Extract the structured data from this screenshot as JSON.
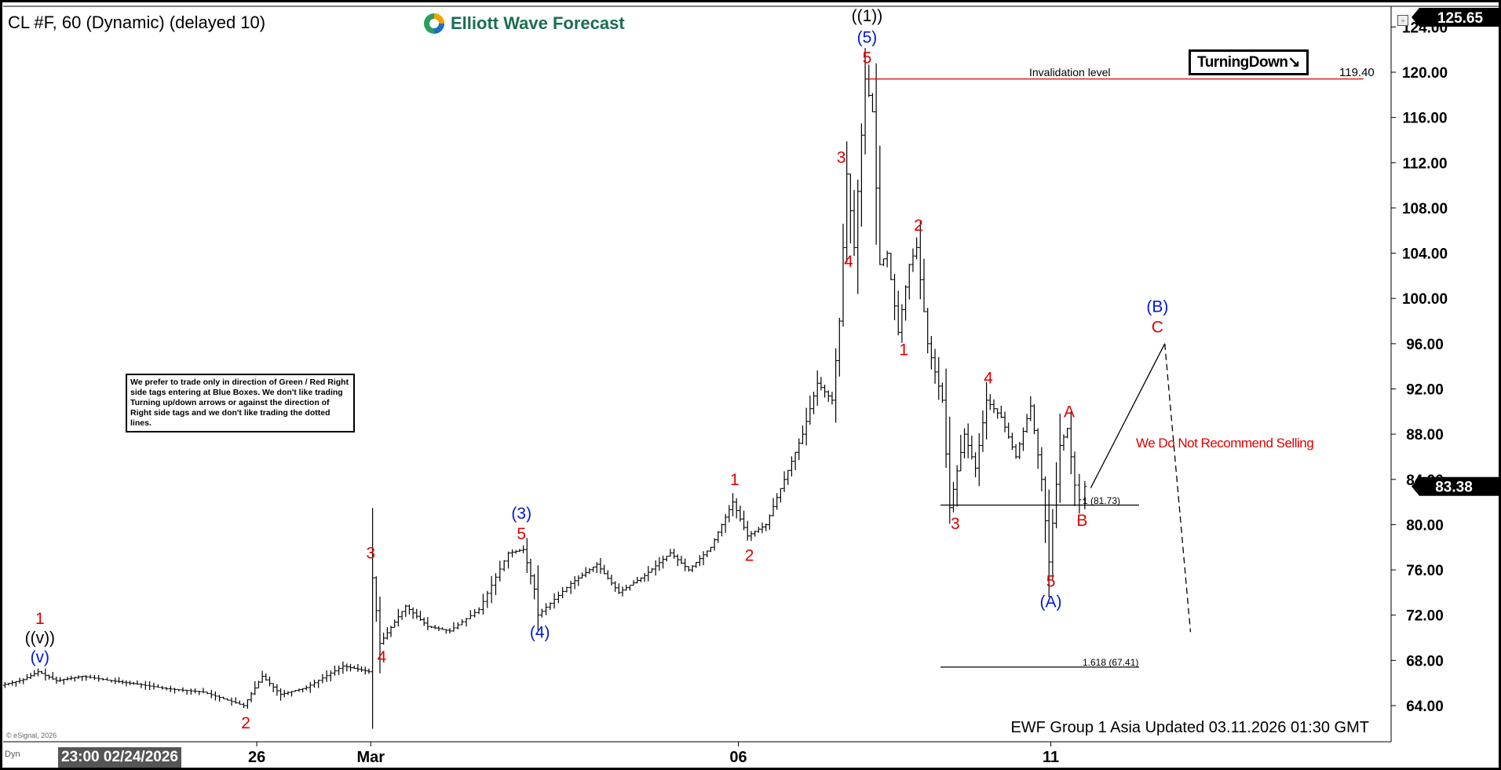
{
  "header": {
    "title": "CL #F, 60 (Dynamic) (delayed 10)",
    "logo_text": "Elliott Wave Forecast"
  },
  "badge": {
    "turning_label": "TurningDown",
    "turning_arrow": "↘"
  },
  "invalidation": {
    "label": "Invalidation level",
    "value": "119.40"
  },
  "fib_labels": {
    "ext1": "1 (81.73)",
    "ext1618": "1.618 (67.41)"
  },
  "warning": "We Do Not Recommend Selling",
  "disclaimer": "We prefer to trade only in direction of Green / Red Right side tags entering at Blue Boxes. We don't like trading Turning up/down arrows or against the direction of Right side tags and we don't like trading the dotted lines.",
  "footer": {
    "update_note": "EWF Group 1 Asia Updated 03.11.2026 01:30 GMT",
    "copyright": "© eSignal, 2026",
    "crosshair_time": "23:00 02/24/2026",
    "dyn": "Dyn"
  },
  "colors": {
    "red": "#e00000",
    "blue": "#0018d8",
    "black": "#000000",
    "price_tag_bg": "#000000"
  },
  "chart_data": {
    "type": "ohlc",
    "symbol": "CL #F",
    "interval": "60",
    "ylim": [
      62,
      125.65
    ],
    "y_ticks": [
      "124.00",
      "120.00",
      "116.00",
      "112.00",
      "108.00",
      "104.00",
      "100.00",
      "96.00",
      "92.00",
      "88.00",
      "84.00",
      "80.00",
      "76.00",
      "72.00",
      "68.00",
      "64.00"
    ],
    "top_price": "125.65",
    "last_price": "83.38",
    "x_ticks": [
      "26",
      "Mar",
      "06",
      "11"
    ],
    "series": [
      {
        "t": 0.0,
        "p": 65.8
      },
      {
        "t": 0.6,
        "p": 66.3
      },
      {
        "t": 1.0,
        "p": 67.0
      },
      {
        "t": 1.5,
        "p": 66.2
      },
      {
        "t": 2.2,
        "p": 66.6
      },
      {
        "t": 3.0,
        "p": 66.2
      },
      {
        "t": 3.7,
        "p": 65.9
      },
      {
        "t": 4.5,
        "p": 65.5
      },
      {
        "t": 5.5,
        "p": 65.2
      },
      {
        "t": 6.6,
        "p": 64.0
      },
      {
        "t": 7.1,
        "p": 66.6
      },
      {
        "t": 7.6,
        "p": 65.0
      },
      {
        "t": 8.3,
        "p": 65.6
      },
      {
        "t": 9.3,
        "p": 67.5
      },
      {
        "t": 10.0,
        "p": 67.0
      },
      {
        "t": 10.1,
        "p": 75.3
      },
      {
        "t": 10.3,
        "p": 69.5
      },
      {
        "t": 11.0,
        "p": 72.8
      },
      {
        "t": 11.6,
        "p": 71.0
      },
      {
        "t": 12.2,
        "p": 70.6
      },
      {
        "t": 13.0,
        "p": 72.5
      },
      {
        "t": 13.8,
        "p": 77.5
      },
      {
        "t": 14.2,
        "p": 77.8
      },
      {
        "t": 14.5,
        "p": 74.3
      },
      {
        "t": 14.6,
        "p": 72.0
      },
      {
        "t": 15.5,
        "p": 74.8
      },
      {
        "t": 16.2,
        "p": 76.5
      },
      {
        "t": 16.8,
        "p": 74.0
      },
      {
        "t": 17.5,
        "p": 75.5
      },
      {
        "t": 18.2,
        "p": 77.5
      },
      {
        "t": 18.7,
        "p": 76.0
      },
      {
        "t": 19.3,
        "p": 78.0
      },
      {
        "t": 19.9,
        "p": 82.0
      },
      {
        "t": 20.3,
        "p": 79.0
      },
      {
        "t": 20.8,
        "p": 80.0
      },
      {
        "t": 21.3,
        "p": 84.0
      },
      {
        "t": 21.8,
        "p": 88.0
      },
      {
        "t": 22.2,
        "p": 92.5
      },
      {
        "t": 22.6,
        "p": 91.0
      },
      {
        "t": 22.8,
        "p": 98.0
      },
      {
        "t": 23.0,
        "p": 111.0
      },
      {
        "t": 23.2,
        "p": 104.5
      },
      {
        "t": 23.5,
        "p": 119.4
      },
      {
        "t": 23.7,
        "p": 116.5
      },
      {
        "t": 23.9,
        "p": 103.0
      },
      {
        "t": 24.1,
        "p": 104.0
      },
      {
        "t": 24.4,
        "p": 97.0
      },
      {
        "t": 24.7,
        "p": 103.0
      },
      {
        "t": 24.9,
        "p": 104.5
      },
      {
        "t": 25.2,
        "p": 96.0
      },
      {
        "t": 25.6,
        "p": 91.0
      },
      {
        "t": 25.8,
        "p": 81.5
      },
      {
        "t": 26.2,
        "p": 88.0
      },
      {
        "t": 26.5,
        "p": 85.0
      },
      {
        "t": 26.8,
        "p": 91.0
      },
      {
        "t": 27.2,
        "p": 89.5
      },
      {
        "t": 27.6,
        "p": 86.0
      },
      {
        "t": 28.0,
        "p": 90.5
      },
      {
        "t": 28.3,
        "p": 84.0
      },
      {
        "t": 28.5,
        "p": 76.7
      },
      {
        "t": 28.8,
        "p": 87.0
      },
      {
        "t": 29.0,
        "p": 88.5
      },
      {
        "t": 29.2,
        "p": 83.5
      },
      {
        "t": 29.35,
        "p": 82.2
      },
      {
        "t": 29.5,
        "p": 83.38
      }
    ],
    "projection": {
      "wave_c_path": [
        {
          "t": 29.5,
          "p": 83.38
        },
        {
          "t": 31.6,
          "p": 96.0
        }
      ],
      "dotted_path": [
        {
          "t": 31.6,
          "p": 96.0
        },
        {
          "t": 32.3,
          "p": 70.5
        }
      ]
    },
    "levels": [
      {
        "name": "invalidation",
        "value": 119.4,
        "t_start": 23.5,
        "t_end": 37.0,
        "color": "#e00000"
      },
      {
        "name": "fib_1",
        "value": 81.73,
        "t_start": 25.5,
        "t_end": 30.9,
        "color": "#000000"
      },
      {
        "name": "fib_1618",
        "value": 67.41,
        "t_start": 25.5,
        "t_end": 30.9,
        "color": "#000000"
      }
    ],
    "wave_labels": [
      {
        "text": "((v))",
        "t": 1.0,
        "p": 69.5,
        "color": "black"
      },
      {
        "text": "1",
        "t": 1.0,
        "p": 71.2,
        "color": "red"
      },
      {
        "text": "(v)",
        "t": 1.0,
        "p": 67.8,
        "color": "blue"
      },
      {
        "text": "2",
        "t": 6.6,
        "p": 62.0,
        "color": "red"
      },
      {
        "text": "3",
        "t": 10.0,
        "p": 77.0,
        "color": "red"
      },
      {
        "text": "4",
        "t": 10.3,
        "p": 67.8,
        "color": "red"
      },
      {
        "text": "(3)",
        "t": 14.1,
        "p": 80.5,
        "color": "blue"
      },
      {
        "text": "5",
        "t": 14.1,
        "p": 78.7,
        "color": "red"
      },
      {
        "text": "(4)",
        "t": 14.6,
        "p": 70.0,
        "color": "blue"
      },
      {
        "text": "1",
        "t": 19.9,
        "p": 83.5,
        "color": "red"
      },
      {
        "text": "2",
        "t": 20.3,
        "p": 76.8,
        "color": "red"
      },
      {
        "text": "((1))",
        "t": 23.5,
        "p": 124.5,
        "color": "black"
      },
      {
        "text": "(5)",
        "t": 23.5,
        "p": 122.6,
        "color": "blue"
      },
      {
        "text": "5",
        "t": 23.5,
        "p": 120.8,
        "color": "red"
      },
      {
        "text": "3",
        "t": 22.8,
        "p": 112.0,
        "color": "red"
      },
      {
        "text": "4",
        "t": 23.0,
        "p": 102.8,
        "color": "red"
      },
      {
        "text": "2",
        "t": 24.9,
        "p": 106.0,
        "color": "red"
      },
      {
        "text": "1",
        "t": 24.5,
        "p": 95.0,
        "color": "red"
      },
      {
        "text": "4",
        "t": 26.8,
        "p": 92.5,
        "color": "red"
      },
      {
        "text": "3",
        "t": 25.9,
        "p": 79.6,
        "color": "red"
      },
      {
        "text": "A",
        "t": 29.0,
        "p": 89.5,
        "color": "red"
      },
      {
        "text": "B",
        "t": 29.35,
        "p": 79.9,
        "color": "red"
      },
      {
        "text": "5",
        "t": 28.5,
        "p": 74.5,
        "color": "red"
      },
      {
        "text": "(A)",
        "t": 28.5,
        "p": 72.7,
        "color": "blue"
      },
      {
        "text": "(B)",
        "t": 31.4,
        "p": 98.8,
        "color": "blue"
      },
      {
        "text": "C",
        "t": 31.4,
        "p": 97.0,
        "color": "red"
      }
    ]
  }
}
